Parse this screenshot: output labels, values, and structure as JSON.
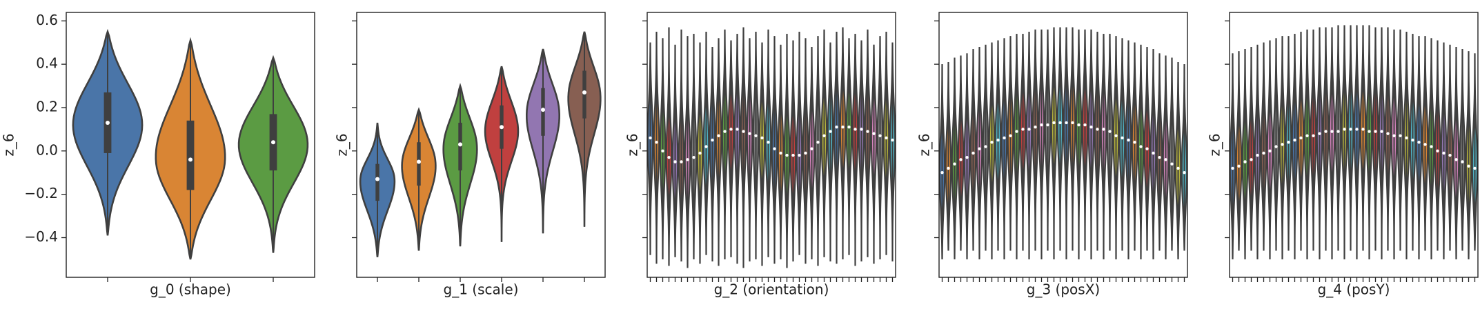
{
  "chart_data": [
    {
      "type": "violin",
      "xlabel": "g_0 (shape)",
      "ylabel": "z_6",
      "categories": [
        null,
        null,
        null
      ],
      "palette": [
        "#4a75a8",
        "#d98534",
        "#5b9b43"
      ],
      "min": [
        -0.39,
        -0.5,
        -0.47
      ],
      "q1": [
        -0.01,
        -0.18,
        -0.09
      ],
      "median": [
        0.13,
        -0.04,
        0.04
      ],
      "q3": [
        0.27,
        0.14,
        0.17
      ],
      "max": [
        0.55,
        0.51,
        0.43
      ],
      "ylim": [
        -0.583,
        0.639
      ],
      "yticks": [
        {
          "value": -0.4,
          "label": "−0.4"
        },
        {
          "value": -0.2,
          "label": "−0.2"
        },
        {
          "value": 0,
          "label": "0.0"
        },
        0.2,
        0.4,
        0.6
      ]
    },
    {
      "type": "violin",
      "xlabel": "g_1 (scale)",
      "ylabel": "z_6",
      "sharey": true,
      "categories": [
        null,
        null,
        null,
        null,
        null,
        null
      ],
      "palette": [
        "#4a75a8",
        "#d98534",
        "#5b9b43",
        "#c0403f",
        "#9276b1",
        "#875f52"
      ],
      "min": [
        -0.49,
        -0.46,
        -0.44,
        -0.42,
        -0.38,
        -0.35
      ],
      "q1": [
        -0.23,
        -0.16,
        -0.09,
        0.01,
        0.07,
        0.15
      ],
      "median": [
        -0.13,
        -0.05,
        0.03,
        0.11,
        0.19,
        0.27
      ],
      "q3": [
        -0.06,
        0.04,
        0.13,
        0.21,
        0.29,
        0.37
      ],
      "max": [
        0.13,
        0.19,
        0.3,
        0.39,
        0.47,
        0.55
      ],
      "ylim": [
        -0.583,
        0.639
      ]
    },
    {
      "type": "violin",
      "xlabel": "g_2 (orientation)",
      "ylabel": "z_6",
      "sharey": true,
      "categories": [
        null,
        null,
        null,
        null,
        null,
        null,
        null,
        null,
        null,
        null,
        null,
        null,
        null,
        null,
        null,
        null,
        null,
        null,
        null,
        null,
        null,
        null,
        null,
        null,
        null,
        null,
        null,
        null,
        null,
        null,
        null,
        null,
        null,
        null,
        null,
        null,
        null,
        null,
        null,
        null
      ],
      "palette": [
        "#4a75a8",
        "#d98534",
        "#5b9b43",
        "#c0403f",
        "#9276b1",
        "#875f52",
        "#d584bd",
        "#7f7f7f",
        "#b8b43c",
        "#4fb4c6"
      ],
      "min": [
        -0.48,
        -0.52,
        -0.5,
        -0.53,
        -0.49,
        -0.51,
        -0.54,
        -0.5,
        -0.52,
        -0.48,
        -0.51,
        -0.53,
        -0.5,
        -0.49,
        -0.52,
        -0.54,
        -0.51,
        -0.5,
        -0.53,
        -0.49,
        -0.52,
        -0.5,
        -0.54,
        -0.51,
        -0.48,
        -0.52,
        -0.5,
        -0.53,
        -0.49,
        -0.51,
        -0.52,
        -0.5,
        -0.48,
        -0.53,
        -0.51,
        -0.49,
        -0.52,
        -0.5,
        -0.48,
        -0.51
      ],
      "q1": [
        -0.06,
        -0.08,
        -0.12,
        -0.15,
        -0.17,
        -0.17,
        -0.16,
        -0.15,
        -0.13,
        -0.1,
        -0.07,
        -0.05,
        -0.03,
        -0.02,
        -0.02,
        -0.03,
        -0.04,
        -0.05,
        -0.06,
        -0.08,
        -0.11,
        -0.13,
        -0.14,
        -0.14,
        -0.14,
        -0.13,
        -0.11,
        -0.08,
        -0.05,
        -0.03,
        -0.01,
        -0.01,
        -0.01,
        -0.02,
        -0.02,
        -0.03,
        -0.04,
        -0.05,
        -0.06,
        -0.07
      ],
      "median": [
        0.06,
        0.04,
        0.0,
        -0.03,
        -0.05,
        -0.05,
        -0.04,
        -0.03,
        -0.01,
        0.02,
        0.05,
        0.07,
        0.09,
        0.1,
        0.1,
        0.09,
        0.08,
        0.07,
        0.06,
        0.04,
        0.01,
        -0.01,
        -0.02,
        -0.02,
        -0.02,
        -0.01,
        0.01,
        0.04,
        0.07,
        0.09,
        0.11,
        0.11,
        0.11,
        0.1,
        0.1,
        0.09,
        0.08,
        0.07,
        0.06,
        0.05
      ],
      "q3": [
        0.18,
        0.16,
        0.12,
        0.09,
        0.07,
        0.07,
        0.08,
        0.09,
        0.11,
        0.14,
        0.17,
        0.19,
        0.21,
        0.22,
        0.22,
        0.21,
        0.2,
        0.19,
        0.18,
        0.16,
        0.13,
        0.11,
        0.1,
        0.1,
        0.1,
        0.11,
        0.13,
        0.16,
        0.19,
        0.21,
        0.23,
        0.23,
        0.23,
        0.22,
        0.22,
        0.21,
        0.2,
        0.19,
        0.18,
        0.17
      ],
      "max": [
        0.5,
        0.55,
        0.52,
        0.57,
        0.49,
        0.56,
        0.53,
        0.54,
        0.5,
        0.55,
        0.48,
        0.52,
        0.56,
        0.51,
        0.54,
        0.57,
        0.52,
        0.55,
        0.5,
        0.56,
        0.53,
        0.49,
        0.54,
        0.51,
        0.55,
        0.52,
        0.48,
        0.53,
        0.56,
        0.5,
        0.55,
        0.57,
        0.52,
        0.54,
        0.51,
        0.56,
        0.49,
        0.53,
        0.55,
        0.5
      ],
      "ylim": [
        -0.583,
        0.639
      ]
    },
    {
      "type": "violin",
      "xlabel": "g_3 (posX)",
      "ylabel": "z_6",
      "sharey": true,
      "categories": [
        null,
        null,
        null,
        null,
        null,
        null,
        null,
        null,
        null,
        null,
        null,
        null,
        null,
        null,
        null,
        null,
        null,
        null,
        null,
        null,
        null,
        null,
        null,
        null,
        null,
        null,
        null,
        null,
        null,
        null,
        null,
        null,
        null,
        null,
        null,
        null,
        null,
        null,
        null,
        null
      ],
      "palette": [
        "#4a75a8",
        "#d98534",
        "#5b9b43",
        "#c0403f",
        "#9276b1",
        "#875f52",
        "#d584bd",
        "#7f7f7f",
        "#b8b43c",
        "#4fb4c6"
      ],
      "min": [
        -0.5,
        -0.46,
        -0.5,
        -0.46,
        -0.5,
        -0.46,
        -0.5,
        -0.46,
        -0.5,
        -0.46,
        -0.5,
        -0.46,
        -0.5,
        -0.46,
        -0.5,
        -0.46,
        -0.5,
        -0.46,
        -0.5,
        -0.46,
        -0.5,
        -0.46,
        -0.5,
        -0.46,
        -0.5,
        -0.46,
        -0.5,
        -0.46,
        -0.5,
        -0.46,
        -0.5,
        -0.46,
        -0.5,
        -0.46,
        -0.5,
        -0.46,
        -0.5,
        -0.46,
        -0.5,
        -0.46
      ],
      "q1": [
        -0.22,
        -0.2,
        -0.18,
        -0.16,
        -0.15,
        -0.13,
        -0.11,
        -0.1,
        -0.08,
        -0.07,
        -0.06,
        -0.05,
        -0.03,
        -0.02,
        -0.02,
        -0.01,
        0.0,
        0.0,
        0.01,
        0.01,
        0.01,
        0.01,
        0.0,
        0.0,
        -0.01,
        -0.02,
        -0.02,
        -0.03,
        -0.05,
        -0.06,
        -0.07,
        -0.08,
        -0.1,
        -0.11,
        -0.13,
        -0.15,
        -0.16,
        -0.18,
        -0.2,
        -0.22
      ],
      "median": [
        -0.1,
        -0.08,
        -0.06,
        -0.04,
        -0.03,
        -0.01,
        0.01,
        0.02,
        0.04,
        0.05,
        0.06,
        0.07,
        0.09,
        0.1,
        0.1,
        0.11,
        0.12,
        0.12,
        0.13,
        0.13,
        0.13,
        0.13,
        0.12,
        0.12,
        0.11,
        0.1,
        0.1,
        0.09,
        0.07,
        0.06,
        0.05,
        0.04,
        0.02,
        0.01,
        -0.01,
        -0.03,
        -0.04,
        -0.06,
        -0.08,
        -0.1
      ],
      "q3": [
        0.02,
        0.04,
        0.06,
        0.08,
        0.09,
        0.11,
        0.13,
        0.14,
        0.16,
        0.17,
        0.18,
        0.19,
        0.21,
        0.22,
        0.22,
        0.23,
        0.24,
        0.24,
        0.25,
        0.25,
        0.25,
        0.25,
        0.24,
        0.24,
        0.23,
        0.22,
        0.22,
        0.21,
        0.19,
        0.18,
        0.17,
        0.16,
        0.14,
        0.13,
        0.11,
        0.09,
        0.08,
        0.06,
        0.04,
        0.02
      ],
      "max": [
        0.4,
        0.41,
        0.43,
        0.44,
        0.45,
        0.47,
        0.48,
        0.49,
        0.5,
        0.51,
        0.52,
        0.53,
        0.54,
        0.54,
        0.55,
        0.56,
        0.56,
        0.56,
        0.57,
        0.57,
        0.57,
        0.57,
        0.56,
        0.56,
        0.56,
        0.55,
        0.54,
        0.54,
        0.53,
        0.52,
        0.51,
        0.5,
        0.49,
        0.48,
        0.47,
        0.45,
        0.44,
        0.43,
        0.41,
        0.4
      ],
      "ylim": [
        -0.583,
        0.639
      ]
    },
    {
      "type": "violin",
      "xlabel": "g_4 (posY)",
      "ylabel": "z_6",
      "sharey": true,
      "categories": [
        null,
        null,
        null,
        null,
        null,
        null,
        null,
        null,
        null,
        null,
        null,
        null,
        null,
        null,
        null,
        null,
        null,
        null,
        null,
        null,
        null,
        null,
        null,
        null,
        null,
        null,
        null,
        null,
        null,
        null,
        null,
        null,
        null,
        null,
        null,
        null,
        null,
        null,
        null,
        null
      ],
      "palette": [
        "#4a75a8",
        "#d98534",
        "#5b9b43",
        "#c0403f",
        "#9276b1",
        "#875f52",
        "#d584bd",
        "#7f7f7f",
        "#b8b43c",
        "#4fb4c6"
      ],
      "min": [
        -0.5,
        -0.46,
        -0.5,
        -0.46,
        -0.5,
        -0.46,
        -0.5,
        -0.46,
        -0.5,
        -0.46,
        -0.5,
        -0.46,
        -0.5,
        -0.46,
        -0.5,
        -0.46,
        -0.5,
        -0.46,
        -0.5,
        -0.46,
        -0.5,
        -0.46,
        -0.5,
        -0.46,
        -0.5,
        -0.46,
        -0.5,
        -0.46,
        -0.5,
        -0.46,
        -0.5,
        -0.46,
        -0.5,
        -0.46,
        -0.5,
        -0.46,
        -0.5,
        -0.46,
        -0.5,
        -0.46
      ],
      "q1": [
        -0.2,
        -0.19,
        -0.17,
        -0.16,
        -0.14,
        -0.13,
        -0.12,
        -0.1,
        -0.09,
        -0.08,
        -0.07,
        -0.06,
        -0.05,
        -0.05,
        -0.04,
        -0.03,
        -0.03,
        -0.03,
        -0.02,
        -0.02,
        -0.02,
        -0.02,
        -0.03,
        -0.03,
        -0.03,
        -0.04,
        -0.05,
        -0.05,
        -0.06,
        -0.07,
        -0.08,
        -0.09,
        -0.1,
        -0.12,
        -0.13,
        -0.14,
        -0.16,
        -0.17,
        -0.19,
        -0.2
      ],
      "median": [
        -0.08,
        -0.07,
        -0.05,
        -0.04,
        -0.02,
        -0.01,
        0.0,
        0.02,
        0.03,
        0.04,
        0.05,
        0.06,
        0.07,
        0.07,
        0.08,
        0.09,
        0.09,
        0.09,
        0.1,
        0.1,
        0.1,
        0.1,
        0.09,
        0.09,
        0.09,
        0.08,
        0.07,
        0.07,
        0.06,
        0.05,
        0.04,
        0.03,
        0.02,
        0.0,
        -0.01,
        -0.02,
        -0.04,
        -0.05,
        -0.07,
        -0.08
      ],
      "q3": [
        0.04,
        0.05,
        0.07,
        0.08,
        0.1,
        0.11,
        0.12,
        0.14,
        0.15,
        0.16,
        0.17,
        0.18,
        0.19,
        0.19,
        0.2,
        0.21,
        0.21,
        0.21,
        0.22,
        0.22,
        0.22,
        0.22,
        0.21,
        0.21,
        0.21,
        0.2,
        0.19,
        0.19,
        0.18,
        0.17,
        0.16,
        0.15,
        0.14,
        0.12,
        0.11,
        0.1,
        0.08,
        0.07,
        0.05,
        0.04
      ],
      "max": [
        0.45,
        0.46,
        0.47,
        0.48,
        0.49,
        0.5,
        0.51,
        0.52,
        0.53,
        0.53,
        0.54,
        0.55,
        0.56,
        0.56,
        0.57,
        0.57,
        0.57,
        0.58,
        0.58,
        0.58,
        0.58,
        0.58,
        0.58,
        0.57,
        0.57,
        0.57,
        0.56,
        0.56,
        0.55,
        0.54,
        0.53,
        0.53,
        0.52,
        0.51,
        0.5,
        0.49,
        0.48,
        0.47,
        0.46,
        0.45
      ],
      "ylim": [
        -0.583,
        0.639
      ]
    }
  ]
}
